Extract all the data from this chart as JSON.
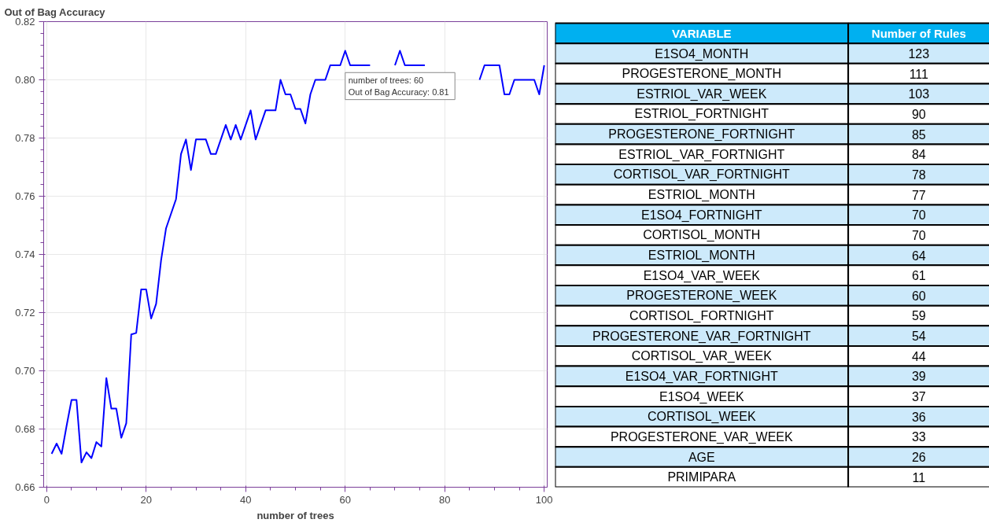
{
  "chart_data": [
    {
      "type": "line",
      "title": "Out of Bag Accuracy",
      "xlabel": "number of trees",
      "x": [
        1,
        2,
        3,
        4,
        5,
        6,
        7,
        8,
        9,
        10,
        11,
        12,
        13,
        14,
        15,
        16,
        17,
        18,
        19,
        20,
        21,
        22,
        23,
        24,
        25,
        26,
        27,
        28,
        29,
        30,
        31,
        32,
        33,
        34,
        35,
        36,
        37,
        38,
        39,
        40,
        41,
        42,
        43,
        44,
        45,
        46,
        47,
        48,
        49,
        50,
        51,
        52,
        53,
        54,
        55,
        56,
        57,
        58,
        59,
        60,
        61,
        62,
        63,
        64,
        65,
        66,
        67,
        68,
        69,
        70,
        71,
        72,
        73,
        74,
        75,
        76,
        77,
        78,
        79,
        80,
        81,
        82,
        83,
        84,
        85,
        86,
        87,
        88,
        89,
        90,
        91,
        92,
        93,
        94,
        95,
        96,
        97,
        98,
        99,
        100
      ],
      "series": [
        {
          "color": "#0000ff",
          "values": [
            0.6715,
            0.675,
            0.6715,
            0.681,
            0.69,
            0.69,
            0.6685,
            0.672,
            0.67,
            0.6755,
            0.674,
            0.6975,
            0.687,
            0.687,
            0.677,
            0.682,
            0.7125,
            0.713,
            0.728,
            0.728,
            0.718,
            0.723,
            0.738,
            0.749,
            0.754,
            0.759,
            0.7745,
            0.7795,
            0.769,
            0.7795,
            0.7795,
            0.7795,
            0.7745,
            0.7745,
            0.7795,
            0.7845,
            0.7795,
            0.7845,
            0.7795,
            0.7845,
            0.7895,
            0.7795,
            0.7845,
            0.7895,
            0.7895,
            0.7895,
            0.8,
            0.795,
            0.795,
            0.79,
            0.79,
            0.785,
            0.795,
            0.8,
            0.8,
            0.8,
            0.805,
            0.805,
            0.805,
            0.81,
            0.805,
            0.805,
            0.805,
            0.805,
            0.805,
            null,
            null,
            null,
            null,
            0.805,
            0.81,
            0.805,
            0.805,
            0.805,
            0.805,
            0.805,
            null,
            null,
            null,
            null,
            null,
            null,
            null,
            null,
            null,
            null,
            0.8,
            0.805,
            0.805,
            0.805,
            0.805,
            0.795,
            0.795,
            0.8,
            0.8,
            0.8,
            0.8,
            0.8,
            0.795,
            0.805
          ]
        }
      ],
      "xlim": [
        -0.6,
        100.6
      ],
      "ylim": [
        0.66,
        0.82
      ],
      "xticks": [
        0,
        20,
        40,
        60,
        80,
        100
      ],
      "yticks": [
        {
          "value": 0.66,
          "label": "0.66"
        },
        {
          "value": 0.68,
          "label": "0.68"
        },
        {
          "value": 0.7,
          "label": "0.70"
        },
        {
          "value": 0.72,
          "label": "0.72"
        },
        {
          "value": 0.74,
          "label": "0.74"
        },
        {
          "value": 0.76,
          "label": "0.76"
        },
        {
          "value": 0.78,
          "label": "0.78"
        },
        {
          "value": 0.8,
          "label": "0.80"
        },
        {
          "value": 0.82,
          "label": "0.82"
        }
      ],
      "grid": true,
      "line_style": "solid",
      "annotations": [
        {
          "text": "number of trees:        60\nOut of Bag Accuracy:  0.81",
          "x": 60,
          "y": 0.81
        }
      ]
    },
    {
      "type": "other",
      "xlabel": "VARIABLE",
      "ylabel": "Number of Rules",
      "data_labels": true,
      "categories": [
        "E1SO4_MONTH",
        "PROGESTERONE_MONTH",
        "ESTRIOL_VAR_WEEK",
        "ESTRIOL_FORTNIGHT",
        "PROGESTERONE_FORTNIGHT",
        "ESTRIOL_VAR_FORTNIGHT",
        "CORTISOL_VAR_FORTNIGHT",
        "ESTRIOL_MONTH",
        "E1SO4_FORTNIGHT",
        "CORTISOL_MONTH",
        "ESTRIOL_MONTH",
        "E1SO4_VAR_WEEK",
        "PROGESTERONE_WEEK",
        "CORTISOL_FORTNIGHT",
        "PROGESTERONE_VAR_FORTNIGHT",
        "CORTISOL_VAR_WEEK",
        "E1SO4_VAR_FORTNIGHT",
        "E1SO4_WEEK",
        "CORTISOL_WEEK",
        "PROGESTERONE_VAR_WEEK",
        "AGE",
        "PRIMIPARA"
      ],
      "values": [
        123,
        111,
        103,
        90,
        85,
        84,
        78,
        77,
        70,
        70,
        64,
        61,
        60,
        59,
        54,
        44,
        39,
        37,
        36,
        33,
        26,
        11
      ],
      "colors": [
        "#cdeafb",
        "#ffffff",
        "#cdeafb",
        "#ffffff",
        "#cdeafb",
        "#ffffff",
        "#cdeafb",
        "#ffffff",
        "#cdeafb",
        "#ffffff",
        "#cdeafb",
        "#ffffff",
        "#cdeafb",
        "#ffffff",
        "#cdeafb",
        "#ffffff",
        "#cdeafb",
        "#ffffff",
        "#cdeafb",
        "#ffffff",
        "#cdeafb",
        "#ffffff"
      ]
    }
  ]
}
